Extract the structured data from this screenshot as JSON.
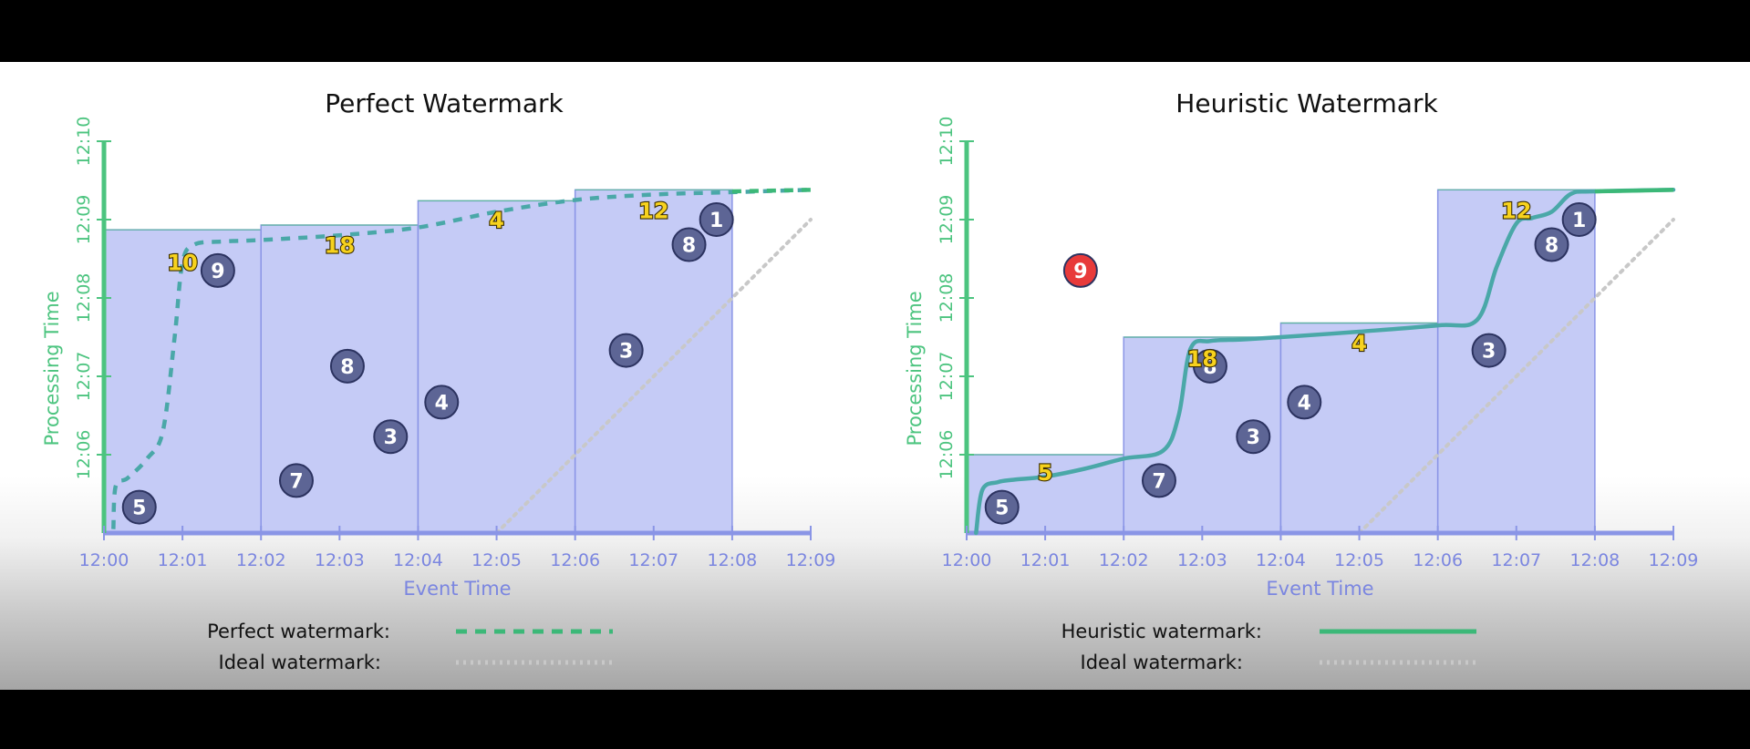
{
  "theme": {
    "window_fill": "#c5cbf6",
    "window_stroke": "#8a95e6",
    "axis_x_color": "#8a95e6",
    "axis_y_color": "#4cc47f",
    "tick_x_color": "#7b86e0",
    "tick_y_color": "#4cc47f",
    "perfect_line": "#4aa8a8",
    "heuristic_line": "#4aa8a8",
    "legend_perfect": "#3cb878",
    "ideal_line": "#c8c8c8",
    "on_time_fill": "#5d6595",
    "late_fill": "#e83a3a",
    "result_fill": "#f7d21e",
    "title_color": "#111111"
  },
  "legend": [
    {
      "label": "Perfect watermark:",
      "style": "dashed-green"
    },
    {
      "label": "Ideal watermark:",
      "style": "dotted-gray"
    },
    {
      "label": "Heuristic watermark:",
      "style": "solid-green"
    },
    {
      "label": "Ideal watermark:",
      "style": "dotted-gray"
    }
  ],
  "chart_data": [
    {
      "type": "scatter",
      "title": "Perfect Watermark",
      "xlabel": "Event Time",
      "ylabel": "Processing Time",
      "x_ticks": [
        "12:00",
        "12:01",
        "12:02",
        "12:03",
        "12:04",
        "12:05",
        "12:06",
        "12:07",
        "12:08",
        "12:09"
      ],
      "y_ticks": [
        "12:06",
        "12:07",
        "12:08",
        "12:09",
        "12:10"
      ],
      "xlim": [
        0,
        9
      ],
      "ylim": [
        5,
        10
      ],
      "windows": [
        {
          "x0": 0,
          "x1": 2,
          "top": 8.87
        },
        {
          "x0": 2,
          "x1": 4,
          "top": 8.93
        },
        {
          "x0": 4,
          "x1": 6,
          "top": 9.24
        },
        {
          "x0": 6,
          "x1": 8,
          "top": 9.38
        }
      ],
      "points": [
        {
          "label": "5",
          "x": 0.45,
          "y": 5.33,
          "kind": "on-time"
        },
        {
          "label": "9",
          "x": 1.45,
          "y": 8.35,
          "kind": "on-time"
        },
        {
          "label": "7",
          "x": 2.45,
          "y": 5.67,
          "kind": "on-time"
        },
        {
          "label": "8",
          "x": 3.1,
          "y": 7.13,
          "kind": "on-time"
        },
        {
          "label": "3",
          "x": 3.65,
          "y": 6.23,
          "kind": "on-time"
        },
        {
          "label": "4",
          "x": 4.3,
          "y": 6.67,
          "kind": "on-time"
        },
        {
          "label": "3",
          "x": 6.65,
          "y": 7.33,
          "kind": "on-time"
        },
        {
          "label": "8",
          "x": 7.45,
          "y": 8.68,
          "kind": "on-time"
        },
        {
          "label": "1",
          "x": 7.8,
          "y": 9.0,
          "kind": "on-time"
        }
      ],
      "results": [
        {
          "label": "10",
          "x": 1.0,
          "y": 8.46
        },
        {
          "label": "18",
          "x": 3.0,
          "y": 8.68
        },
        {
          "label": "4",
          "x": 5.0,
          "y": 9.0
        },
        {
          "label": "12",
          "x": 7.0,
          "y": 9.12
        }
      ],
      "watermark": {
        "name": "Perfect watermark",
        "style": "dashed",
        "x": [
          0.12,
          0.15,
          0.3,
          0.55,
          0.75,
          0.9,
          1.0,
          1.15,
          1.5,
          2.0,
          3.0,
          4.0,
          5.0,
          6.0,
          7.0,
          8.0,
          9.0
        ],
        "y": [
          5.05,
          5.6,
          5.7,
          5.95,
          6.3,
          7.5,
          8.45,
          8.68,
          8.72,
          8.74,
          8.8,
          8.9,
          9.1,
          9.25,
          9.32,
          9.35,
          9.38
        ]
      },
      "ideal": {
        "name": "Ideal watermark",
        "x": [
          5.0,
          9.0
        ],
        "y": [
          5.0,
          9.0
        ]
      }
    },
    {
      "type": "scatter",
      "title": "Heuristic Watermark",
      "xlabel": "Event Time",
      "ylabel": "Processing Time",
      "x_ticks": [
        "12:00",
        "12:01",
        "12:02",
        "12:03",
        "12:04",
        "12:05",
        "12:06",
        "12:07",
        "12:08",
        "12:09"
      ],
      "y_ticks": [
        "12:06",
        "12:07",
        "12:08",
        "12:09",
        "12:10"
      ],
      "xlim": [
        0,
        9
      ],
      "ylim": [
        5,
        10
      ],
      "windows": [
        {
          "x0": 0,
          "x1": 2,
          "top": 6.0
        },
        {
          "x0": 2,
          "x1": 4,
          "top": 7.5
        },
        {
          "x0": 4,
          "x1": 6,
          "top": 7.68
        },
        {
          "x0": 6,
          "x1": 8,
          "top": 9.38
        }
      ],
      "points": [
        {
          "label": "5",
          "x": 0.45,
          "y": 5.33,
          "kind": "on-time"
        },
        {
          "label": "9",
          "x": 1.45,
          "y": 8.35,
          "kind": "late"
        },
        {
          "label": "7",
          "x": 2.45,
          "y": 5.67,
          "kind": "on-time"
        },
        {
          "label": "8",
          "x": 3.1,
          "y": 7.13,
          "kind": "on-time"
        },
        {
          "label": "3",
          "x": 3.65,
          "y": 6.23,
          "kind": "on-time"
        },
        {
          "label": "4",
          "x": 4.3,
          "y": 6.67,
          "kind": "on-time"
        },
        {
          "label": "3",
          "x": 6.65,
          "y": 7.33,
          "kind": "on-time"
        },
        {
          "label": "8",
          "x": 7.45,
          "y": 8.68,
          "kind": "on-time"
        },
        {
          "label": "1",
          "x": 7.8,
          "y": 9.0,
          "kind": "on-time"
        }
      ],
      "results": [
        {
          "label": "5",
          "x": 1.0,
          "y": 5.78
        },
        {
          "label": "18",
          "x": 3.0,
          "y": 7.23
        },
        {
          "label": "4",
          "x": 5.0,
          "y": 7.43
        },
        {
          "label": "12",
          "x": 7.0,
          "y": 9.12
        }
      ],
      "watermark": {
        "name": "Heuristic watermark",
        "style": "solid",
        "x": [
          0.12,
          0.2,
          0.4,
          0.6,
          1.0,
          1.5,
          2.0,
          2.5,
          2.7,
          2.85,
          3.1,
          3.5,
          4.0,
          5.0,
          6.0,
          6.5,
          6.75,
          7.0,
          7.2,
          7.45,
          7.7,
          8.0,
          9.0
        ],
        "y": [
          5.0,
          5.55,
          5.65,
          5.68,
          5.72,
          5.82,
          5.95,
          6.05,
          6.5,
          7.35,
          7.45,
          7.47,
          7.5,
          7.57,
          7.65,
          7.72,
          8.4,
          8.95,
          9.02,
          9.1,
          9.33,
          9.36,
          9.38
        ]
      },
      "ideal": {
        "name": "Ideal watermark",
        "x": [
          5.0,
          9.0
        ],
        "y": [
          5.0,
          9.0
        ]
      }
    }
  ]
}
